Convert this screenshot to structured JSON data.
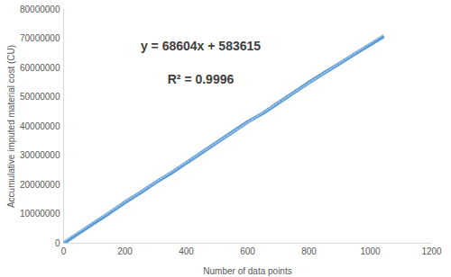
{
  "chart_data": {
    "type": "line",
    "x_label": "Number of data points",
    "y_label": "Accumulative imputed material cost (CU)",
    "annotations": [
      "y = 68604x + 583615",
      "R² = 0.9996"
    ],
    "xlim": [
      0,
      1200
    ],
    "xticks": [
      0,
      200,
      400,
      600,
      800,
      1000,
      1200
    ],
    "ylim": [
      0,
      80000000
    ],
    "yticks": [
      0,
      10000000,
      20000000,
      30000000,
      40000000,
      50000000,
      60000000,
      70000000,
      80000000
    ],
    "grid": false,
    "series": [
      {
        "color": "#5b9bd5",
        "line_style": "solid",
        "x": [
          0,
          50,
          100,
          150,
          200,
          250,
          300,
          350,
          400,
          450,
          500,
          550,
          600,
          650,
          700,
          750,
          800,
          850,
          900,
          950,
          1000,
          1040
        ],
        "values": [
          0,
          3500000,
          7000000,
          10400000,
          14000000,
          17300000,
          20800000,
          24000000,
          27500000,
          31000000,
          34500000,
          38000000,
          41500000,
          44500000,
          48000000,
          51500000,
          55000000,
          58300000,
          61500000,
          64800000,
          68000000,
          70500000
        ]
      },
      {
        "color": "#9dc3e6",
        "line_style": "dotted",
        "type": "trendline",
        "x": [
          0,
          1045
        ],
        "values": [
          600000,
          71500000
        ]
      }
    ]
  }
}
